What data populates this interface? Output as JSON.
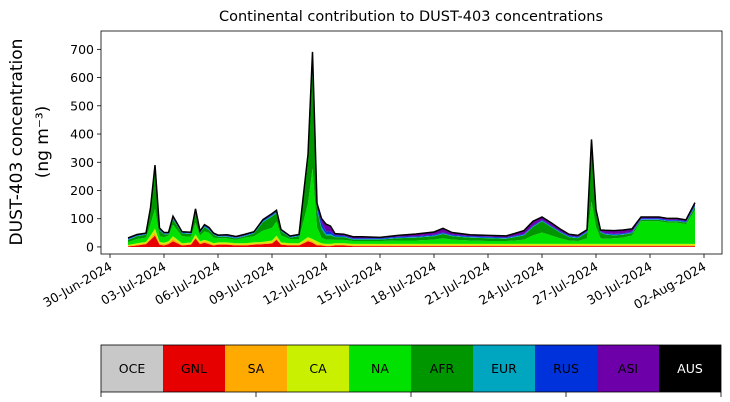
{
  "chart_data": {
    "type": "area",
    "stacked": true,
    "title": "Continental contribution to DUST-403 concentrations",
    "ylabel_line1": "DUST-403 concentration",
    "ylabel_line2": "(ng m⁻³)",
    "xlabel": "",
    "ylim": [
      -25,
      765
    ],
    "yticks": [
      0,
      100,
      200,
      300,
      400,
      500,
      600,
      700
    ],
    "xlim": [
      "2024-06-29T12:00",
      "2024-08-03T00:00"
    ],
    "xticks": [
      "30-Jun-2024",
      "03-Jul-2024",
      "06-Jul-2024",
      "09-Jul-2024",
      "12-Jul-2024",
      "15-Jul-2024",
      "18-Jul-2024",
      "21-Jul-2024",
      "24-Jul-2024",
      "27-Jul-2024",
      "30-Jul-2024",
      "02-Aug-2024"
    ],
    "x": [
      "2024-07-01T00:00",
      "2024-07-01T12:00",
      "2024-07-02T00:00",
      "2024-07-02T06:00",
      "2024-07-02T12:00",
      "2024-07-02T18:00",
      "2024-07-03T00:00",
      "2024-07-03T06:00",
      "2024-07-03T12:00",
      "2024-07-04T00:00",
      "2024-07-04T12:00",
      "2024-07-04T18:00",
      "2024-07-05T00:00",
      "2024-07-05T06:00",
      "2024-07-05T12:00",
      "2024-07-05T18:00",
      "2024-07-06T00:00",
      "2024-07-06T12:00",
      "2024-07-07T00:00",
      "2024-07-07T12:00",
      "2024-07-08T00:00",
      "2024-07-08T12:00",
      "2024-07-09T00:00",
      "2024-07-09T06:00",
      "2024-07-09T12:00",
      "2024-07-10T00:00",
      "2024-07-10T12:00",
      "2024-07-11T00:00",
      "2024-07-11T06:00",
      "2024-07-11T12:00",
      "2024-07-11T18:00",
      "2024-07-12T00:00",
      "2024-07-12T06:00",
      "2024-07-12T12:00",
      "2024-07-13T00:00",
      "2024-07-13T12:00",
      "2024-07-14T00:00",
      "2024-07-15T00:00",
      "2024-07-16T00:00",
      "2024-07-17T00:00",
      "2024-07-18T00:00",
      "2024-07-18T12:00",
      "2024-07-19T00:00",
      "2024-07-20T00:00",
      "2024-07-21T00:00",
      "2024-07-22T00:00",
      "2024-07-22T12:00",
      "2024-07-23T00:00",
      "2024-07-23T12:00",
      "2024-07-24T00:00",
      "2024-07-24T12:00",
      "2024-07-25T00:00",
      "2024-07-25T12:00",
      "2024-07-26T00:00",
      "2024-07-26T12:00",
      "2024-07-26T18:00",
      "2024-07-27T00:00",
      "2024-07-27T06:00",
      "2024-07-27T12:00",
      "2024-07-28T00:00",
      "2024-07-28T12:00",
      "2024-07-29T00:00",
      "2024-07-29T12:00",
      "2024-07-30T00:00",
      "2024-07-30T12:00",
      "2024-07-31T00:00",
      "2024-07-31T12:00",
      "2024-08-01T00:00",
      "2024-08-01T12:00"
    ],
    "series": [
      {
        "name": "OCE",
        "color": "#c8c8c8",
        "values": [
          0,
          0,
          0,
          0,
          0,
          0,
          0,
          0,
          0,
          0,
          0,
          0,
          0,
          0,
          0,
          0,
          0,
          0,
          0,
          0,
          0,
          0,
          0,
          0,
          0,
          0,
          0,
          0,
          0,
          0,
          0,
          0,
          0,
          0,
          0,
          0,
          0,
          0,
          0,
          0,
          0,
          0,
          0,
          0,
          0,
          0,
          0,
          0,
          0,
          0,
          0,
          0,
          0,
          0,
          0,
          0,
          0,
          0,
          0,
          0,
          0,
          0,
          0,
          0,
          0,
          0,
          0,
          0,
          0
        ]
      },
      {
        "name": "GNL",
        "color": "#e60000",
        "values": [
          2,
          5,
          10,
          25,
          40,
          8,
          5,
          10,
          20,
          5,
          8,
          30,
          10,
          15,
          10,
          5,
          8,
          8,
          5,
          5,
          8,
          10,
          12,
          25,
          8,
          5,
          5,
          20,
          15,
          5,
          5,
          3,
          3,
          5,
          5,
          3,
          3,
          3,
          3,
          3,
          3,
          3,
          3,
          3,
          3,
          3,
          3,
          3,
          3,
          3,
          3,
          3,
          3,
          3,
          3,
          3,
          3,
          3,
          3,
          3,
          3,
          3,
          3,
          3,
          3,
          3,
          3,
          3,
          3
        ]
      },
      {
        "name": "SA",
        "color": "#ffaa00",
        "values": [
          2,
          3,
          3,
          5,
          10,
          5,
          5,
          5,
          8,
          3,
          3,
          5,
          5,
          5,
          5,
          3,
          3,
          3,
          3,
          3,
          3,
          3,
          3,
          5,
          3,
          3,
          3,
          5,
          5,
          5,
          3,
          3,
          3,
          3,
          3,
          3,
          3,
          3,
          3,
          3,
          3,
          3,
          3,
          3,
          3,
          3,
          3,
          3,
          3,
          3,
          3,
          3,
          3,
          3,
          3,
          3,
          3,
          3,
          3,
          3,
          3,
          3,
          3,
          3,
          3,
          3,
          3,
          3,
          3
        ]
      },
      {
        "name": "CA",
        "color": "#c8f000",
        "values": [
          3,
          5,
          5,
          10,
          15,
          5,
          5,
          5,
          10,
          5,
          5,
          10,
          5,
          5,
          5,
          5,
          5,
          5,
          5,
          5,
          5,
          5,
          8,
          10,
          5,
          5,
          5,
          10,
          8,
          10,
          5,
          5,
          5,
          5,
          5,
          5,
          5,
          5,
          5,
          5,
          5,
          5,
          5,
          5,
          5,
          5,
          5,
          5,
          5,
          5,
          5,
          5,
          5,
          5,
          5,
          5,
          5,
          5,
          5,
          5,
          5,
          5,
          5,
          5,
          5,
          5,
          5,
          5,
          5
        ]
      },
      {
        "name": "NA",
        "color": "#00e100",
        "values": [
          10,
          15,
          15,
          40,
          70,
          20,
          20,
          20,
          40,
          25,
          20,
          40,
          20,
          30,
          30,
          20,
          15,
          15,
          12,
          20,
          22,
          40,
          45,
          50,
          25,
          15,
          15,
          120,
          250,
          50,
          20,
          15,
          15,
          12,
          12,
          10,
          10,
          10,
          12,
          12,
          15,
          20,
          15,
          12,
          10,
          10,
          12,
          15,
          30,
          40,
          30,
          20,
          12,
          10,
          20,
          150,
          60,
          20,
          18,
          20,
          22,
          30,
          80,
          80,
          80,
          75,
          75,
          70,
          120
        ]
      },
      {
        "name": "AFR",
        "color": "#009600",
        "values": [
          8,
          10,
          10,
          50,
          140,
          20,
          10,
          5,
          20,
          10,
          10,
          40,
          10,
          15,
          10,
          10,
          5,
          5,
          5,
          5,
          10,
          30,
          40,
          30,
          15,
          5,
          10,
          150,
          350,
          60,
          30,
          15,
          15,
          10,
          10,
          5,
          5,
          5,
          8,
          10,
          12,
          15,
          12,
          10,
          10,
          8,
          12,
          15,
          30,
          40,
          30,
          20,
          12,
          10,
          20,
          200,
          50,
          20,
          15,
          10,
          10,
          8,
          5,
          5,
          5,
          5,
          5,
          5,
          10
        ]
      },
      {
        "name": "EUR",
        "color": "#00a5c0",
        "values": [
          2,
          2,
          2,
          3,
          5,
          3,
          2,
          2,
          3,
          2,
          2,
          3,
          2,
          3,
          3,
          2,
          2,
          2,
          2,
          2,
          2,
          3,
          3,
          3,
          2,
          2,
          2,
          5,
          8,
          5,
          8,
          5,
          5,
          2,
          2,
          2,
          2,
          2,
          2,
          2,
          2,
          2,
          2,
          2,
          2,
          2,
          2,
          2,
          2,
          2,
          2,
          2,
          2,
          2,
          2,
          5,
          3,
          2,
          2,
          2,
          2,
          2,
          2,
          2,
          2,
          2,
          2,
          2,
          3
        ]
      },
      {
        "name": "RUS",
        "color": "#0032dc",
        "values": [
          2,
          2,
          2,
          3,
          5,
          3,
          2,
          2,
          3,
          2,
          2,
          3,
          2,
          3,
          3,
          2,
          2,
          2,
          2,
          2,
          2,
          3,
          3,
          3,
          2,
          2,
          2,
          8,
          15,
          10,
          15,
          10,
          8,
          5,
          3,
          3,
          3,
          3,
          3,
          3,
          3,
          3,
          3,
          3,
          3,
          3,
          3,
          3,
          3,
          3,
          3,
          3,
          3,
          3,
          3,
          5,
          3,
          2,
          3,
          3,
          3,
          3,
          3,
          3,
          3,
          3,
          3,
          3,
          5
        ]
      },
      {
        "name": "ASI",
        "color": "#6e00aa",
        "values": [
          3,
          2,
          2,
          3,
          5,
          3,
          2,
          2,
          5,
          2,
          2,
          4,
          2,
          3,
          3,
          2,
          2,
          3,
          3,
          3,
          2,
          3,
          4,
          4,
          2,
          2,
          2,
          10,
          40,
          10,
          15,
          25,
          20,
          5,
          5,
          5,
          5,
          3,
          5,
          8,
          10,
          15,
          8,
          5,
          5,
          5,
          8,
          12,
          15,
          10,
          10,
          8,
          5,
          5,
          5,
          10,
          5,
          5,
          10,
          12,
          12,
          10,
          5,
          5,
          5,
          5,
          5,
          5,
          8
        ]
      },
      {
        "name": "AUS",
        "color": "#000000",
        "values": [
          0,
          0,
          0,
          0,
          0,
          0,
          0,
          0,
          0,
          0,
          0,
          0,
          0,
          0,
          0,
          0,
          0,
          0,
          0,
          0,
          0,
          0,
          0,
          0,
          0,
          0,
          0,
          0,
          0,
          0,
          0,
          0,
          0,
          0,
          0,
          0,
          0,
          0,
          0,
          0,
          0,
          0,
          0,
          0,
          0,
          0,
          0,
          0,
          0,
          0,
          0,
          0,
          0,
          0,
          0,
          0,
          0,
          0,
          0,
          0,
          0,
          0,
          0,
          0,
          0,
          0,
          0,
          0,
          0
        ]
      }
    ],
    "legend": {
      "placement": "bottom",
      "style": "colorbar",
      "entries": [
        "OCE",
        "GNL",
        "SA",
        "CA",
        "NA",
        "AFR",
        "EUR",
        "RUS",
        "ASI",
        "AUS"
      ]
    }
  }
}
